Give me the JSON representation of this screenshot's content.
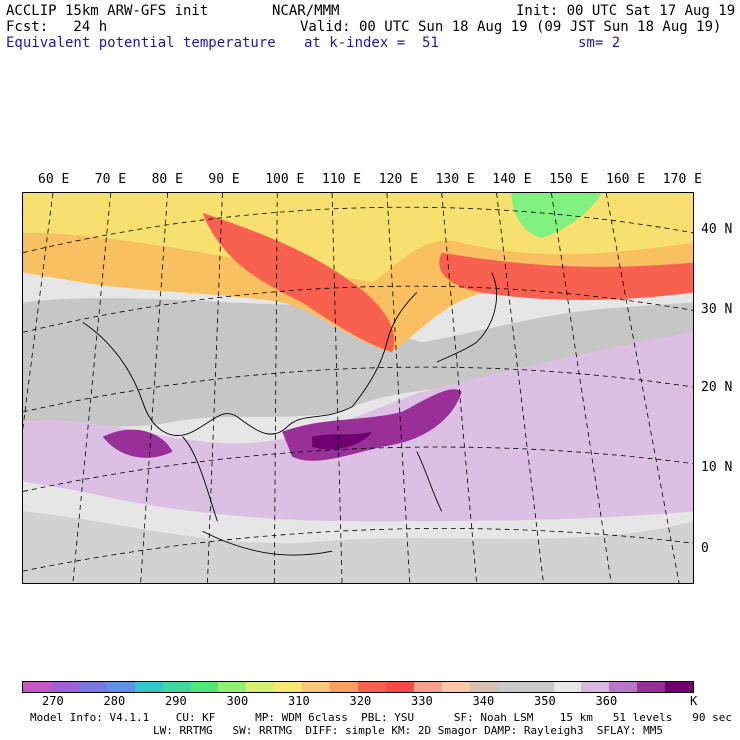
{
  "header": {
    "left1": "ACCLIP 15km ARW-GFS init",
    "left2": "Fcst:   24 h",
    "center1": "NCAR/MMM",
    "right1": "Init: 00 UTC Sat 17 Aug 19",
    "valid": "Valid: 00 UTC Sun 18 Aug 19 (09 JST Sun 18 Aug 19)",
    "field": "Equivalent potential temperature",
    "level": "at k-index =  51",
    "smooth": "sm= 2"
  },
  "longitude_labels": [
    "60 E",
    "70 E",
    "80 E",
    "90 E",
    "100 E",
    "110 E",
    "120 E",
    "130 E",
    "140 E",
    "150 E",
    "160 E",
    "170 E"
  ],
  "latitude_labels": [
    "40 N",
    "30 N",
    "20 N",
    "10 N",
    "0"
  ],
  "colorbar": {
    "colors": [
      "#c858c8",
      "#a060d8",
      "#7878e0",
      "#6090e8",
      "#30c8c8",
      "#40d8a0",
      "#50e878",
      "#90f070",
      "#d8f070",
      "#f8e870",
      "#f8c878",
      "#f8a060",
      "#f86050",
      "#f84848",
      "#f8a090",
      "#f8c8a8",
      "#d8c0b0",
      "#c8c8c8",
      "#c8c8c8",
      "#e8e8e8",
      "#d8b8e0",
      "#b878c8",
      "#983098",
      "#700070"
    ],
    "ticks": [
      "270",
      "280",
      "290",
      "300",
      "310",
      "320",
      "330",
      "340",
      "350",
      "360"
    ],
    "unit": "K"
  },
  "footer": {
    "line1": "Model Info: V4.1.1    CU: KF      MP: WDM 6class  PBL: YSU      SF: Noah LSM    15 km   51 levels   90 sec",
    "line2": "LW: RRTMG   SW: RRTMG  DIFF: simple KM: 2D Smagor DAMP: Rayleigh3  SFLAY: MM5"
  },
  "colors": {
    "header_blue": "#1a1aa6"
  }
}
